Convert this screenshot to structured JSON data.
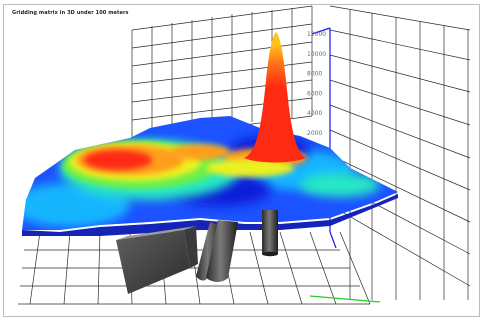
{
  "window": {
    "title": "Gridding matrix in 3D under 100 meters"
  },
  "chart_data": {
    "type": "surface-3d",
    "title": "Gridding matrix in 3D under 100 meters",
    "z_axis": {
      "tick_labels": [
        "12000",
        "10000",
        "8000",
        "6000",
        "4000",
        "2000"
      ],
      "values": [
        12000,
        10000,
        8000,
        6000,
        4000,
        2000
      ]
    },
    "colormap": [
      "#0a1ad8",
      "#1c52ff",
      "#18b6ff",
      "#26e8c4",
      "#6cf04a",
      "#ecf020",
      "#ff9e1a",
      "#ff2a12"
    ],
    "peak": {
      "z": 12000,
      "color": "#ff2a12"
    },
    "features": [
      "surface",
      "peak",
      "cylinder-column",
      "cylinder-column",
      "block-column"
    ],
    "grid": true,
    "wall_color": "#1a1ae6",
    "floor_accent_color": "#22cc22"
  }
}
